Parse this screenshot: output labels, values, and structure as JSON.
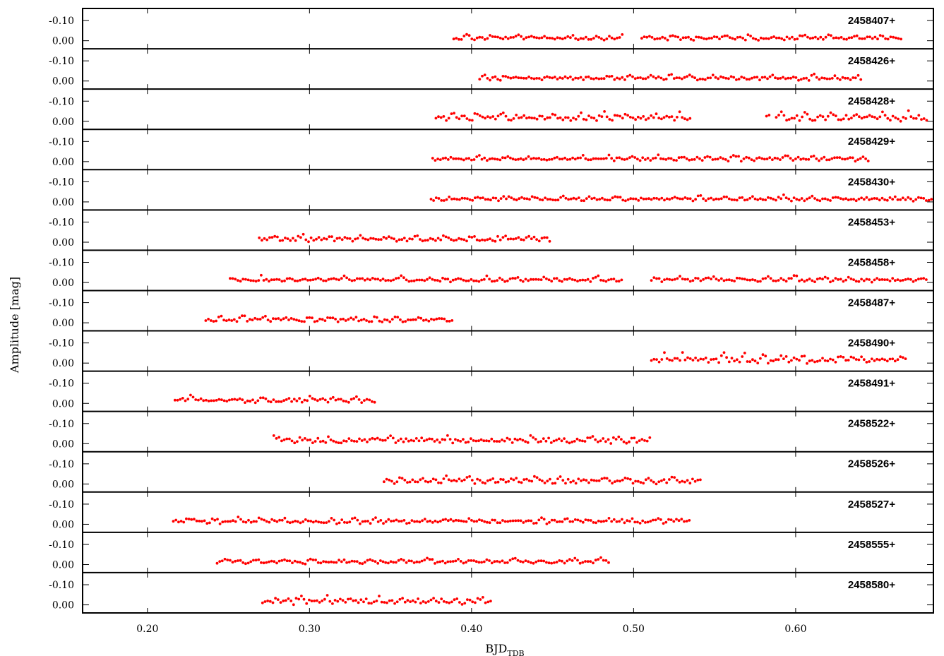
{
  "chart_data": {
    "type": "scatter",
    "xlabel": "BJD",
    "xlabel_subscript": "TDB",
    "ylabel": "Amplitude [mag]",
    "xlim": [
      0.16,
      0.685
    ],
    "x_ticks": [
      0.2,
      0.3,
      0.4,
      0.5,
      0.6
    ],
    "x_tick_labels": [
      "0.20",
      "0.30",
      "0.40",
      "0.50",
      "0.60"
    ],
    "ylim": [
      0.04,
      -0.16
    ],
    "y_ticks": [
      -0.1,
      0.0
    ],
    "y_tick_labels": [
      "-0.10",
      "0.00"
    ],
    "y_inverted": true,
    "marker_color": "#ff0000",
    "grid": false,
    "panels": [
      {
        "label": "2458407+",
        "segments": [
          [
            0.389,
            0.494
          ],
          [
            0.505,
            0.666
          ]
        ],
        "amplitude": 0.03
      },
      {
        "label": "2458426+",
        "segments": [
          [
            0.405,
            0.641
          ]
        ],
        "amplitude": 0.03
      },
      {
        "label": "2458428+",
        "segments": [
          [
            0.378,
            0.536
          ],
          [
            0.582,
            0.585
          ],
          [
            0.588,
            0.682
          ]
        ],
        "amplitude": 0.05
      },
      {
        "label": "2458429+",
        "segments": [
          [
            0.376,
            0.646
          ]
        ],
        "amplitude": 0.03
      },
      {
        "label": "2458430+",
        "segments": [
          [
            0.375,
            0.684
          ]
        ],
        "amplitude": 0.03
      },
      {
        "label": "2458453+",
        "segments": [
          [
            0.269,
            0.449
          ]
        ],
        "amplitude": 0.04
      },
      {
        "label": "2458458+",
        "segments": [
          [
            0.251,
            0.493
          ],
          [
            0.511,
            0.681
          ]
        ],
        "amplitude": 0.03
      },
      {
        "label": "2458487+",
        "segments": [
          [
            0.236,
            0.388
          ]
        ],
        "amplitude": 0.035
      },
      {
        "label": "2458490+",
        "segments": [
          [
            0.511,
            0.669
          ]
        ],
        "amplitude": 0.05
      },
      {
        "label": "2458491+",
        "segments": [
          [
            0.217,
            0.341
          ]
        ],
        "amplitude": 0.04
      },
      {
        "label": "2458522+",
        "segments": [
          [
            0.278,
            0.51
          ]
        ],
        "amplitude": 0.045
      },
      {
        "label": "2458526+",
        "segments": [
          [
            0.346,
            0.542
          ]
        ],
        "amplitude": 0.04
      },
      {
        "label": "2458527+",
        "segments": [
          [
            0.216,
            0.535
          ]
        ],
        "amplitude": 0.035
      },
      {
        "label": "2458555+",
        "segments": [
          [
            0.243,
            0.486
          ]
        ],
        "amplitude": 0.03
      },
      {
        "label": "2458580+",
        "segments": [
          [
            0.271,
            0.413
          ]
        ],
        "amplitude": 0.05
      }
    ]
  }
}
